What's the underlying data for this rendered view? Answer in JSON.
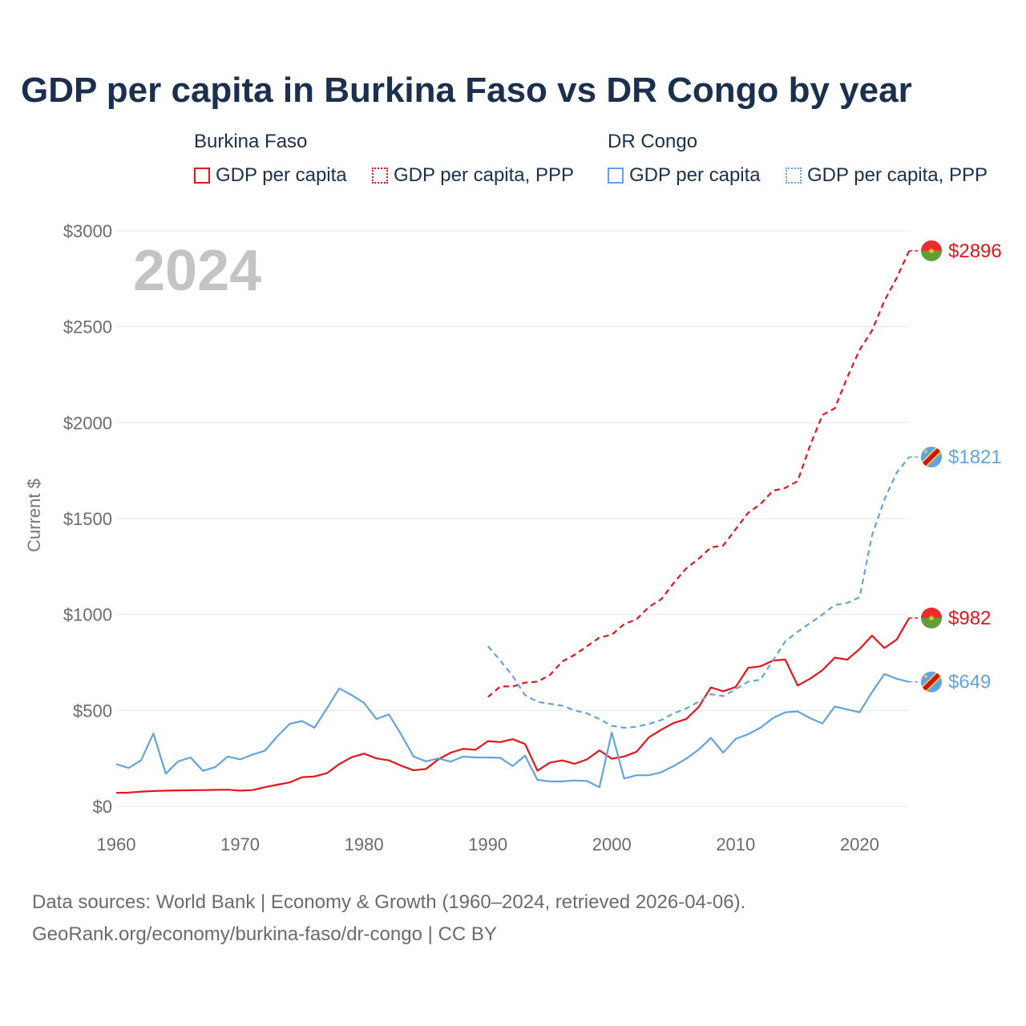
{
  "title": "GDP per capita in Burkina Faso vs DR Congo by year",
  "legend": {
    "groups": [
      {
        "country": "Burkina Faso",
        "color": "#e8141a",
        "items": [
          {
            "label": "GDP per capita",
            "style": "solid"
          },
          {
            "label": "GDP per capita, PPP",
            "style": "dotted"
          }
        ]
      },
      {
        "country": "DR Congo",
        "color": "#63a3e0",
        "items": [
          {
            "label": "GDP per capita",
            "style": "solid"
          },
          {
            "label": "GDP per capita, PPP",
            "style": "dotted"
          }
        ]
      }
    ]
  },
  "chart_data": {
    "type": "line",
    "year_label": "2024",
    "ylabel": "Current $",
    "xlabel": "",
    "xlim": [
      1960,
      2025.8
    ],
    "ylim": [
      0,
      3000
    ],
    "x_ticks": [
      1960,
      1970,
      1980,
      1990,
      2000,
      2010,
      2020
    ],
    "y_ticks": [
      0,
      500,
      1000,
      1500,
      2000,
      2500,
      3000
    ],
    "y_tick_labels": [
      "$0",
      "$500",
      "$1000",
      "$1500",
      "$2000",
      "$2500",
      "$3000"
    ],
    "series": [
      {
        "name": "Burkina Faso — GDP per capita",
        "country": "Burkina Faso",
        "color": "#e8141a",
        "dash": "solid",
        "end_label": "$982",
        "x_start": 1960,
        "values": [
          70,
          72,
          77,
          80,
          82,
          83,
          84,
          85,
          86,
          87,
          82,
          85,
          100,
          113,
          125,
          152,
          156,
          173,
          220,
          256,
          275,
          250,
          240,
          212,
          188,
          195,
          245,
          280,
          300,
          295,
          340,
          335,
          350,
          325,
          186,
          228,
          240,
          222,
          245,
          292,
          248,
          260,
          285,
          360,
          400,
          435,
          455,
          517,
          620,
          600,
          622,
          722,
          730,
          760,
          765,
          630,
          665,
          710,
          775,
          765,
          820,
          890,
          825,
          870,
          982
        ]
      },
      {
        "name": "Burkina Faso — GDP per capita, PPP",
        "country": "Burkina Faso",
        "color": "#e8141a",
        "dash": "dotted",
        "end_label": "$2896",
        "x_start": 1990,
        "values": [
          570,
          625,
          625,
          645,
          650,
          685,
          755,
          790,
          835,
          880,
          895,
          950,
          975,
          1040,
          1080,
          1165,
          1240,
          1290,
          1350,
          1360,
          1445,
          1530,
          1575,
          1645,
          1660,
          1695,
          1880,
          2040,
          2075,
          2235,
          2380,
          2480,
          2635,
          2755,
          2896
        ]
      },
      {
        "name": "DR Congo — GDP per capita",
        "country": "DR Congo",
        "color": "#63a3e0",
        "dash": "solid",
        "end_label": "$649",
        "x_start": 1960,
        "values": [
          220,
          200,
          240,
          380,
          170,
          235,
          255,
          185,
          205,
          260,
          245,
          270,
          290,
          365,
          430,
          445,
          410,
          510,
          615,
          580,
          540,
          455,
          480,
          375,
          260,
          235,
          250,
          233,
          260,
          255,
          255,
          253,
          210,
          265,
          138,
          130,
          130,
          135,
          132,
          100,
          385,
          145,
          162,
          162,
          178,
          210,
          248,
          295,
          357,
          280,
          352,
          376,
          410,
          460,
          490,
          495,
          460,
          432,
          520,
          505,
          490,
          595,
          690,
          665,
          649
        ]
      },
      {
        "name": "DR Congo — GDP per capita, PPP",
        "country": "DR Congo",
        "color": "#63a3e0",
        "dash": "dotted",
        "end_label": "$1821",
        "x_start": 1990,
        "values": [
          835,
          760,
          680,
          580,
          545,
          535,
          525,
          500,
          485,
          455,
          420,
          410,
          415,
          430,
          450,
          485,
          510,
          545,
          585,
          575,
          610,
          650,
          660,
          760,
          860,
          910,
          955,
          1000,
          1050,
          1060,
          1090,
          1410,
          1600,
          1740,
          1821
        ]
      }
    ]
  },
  "footer": {
    "line1": "Data sources: World Bank | Economy & Growth (1960–2024, retrieved 2026-04-06).",
    "line2": "GeoRank.org/economy/burkina-faso/dr-congo | CC BY"
  }
}
